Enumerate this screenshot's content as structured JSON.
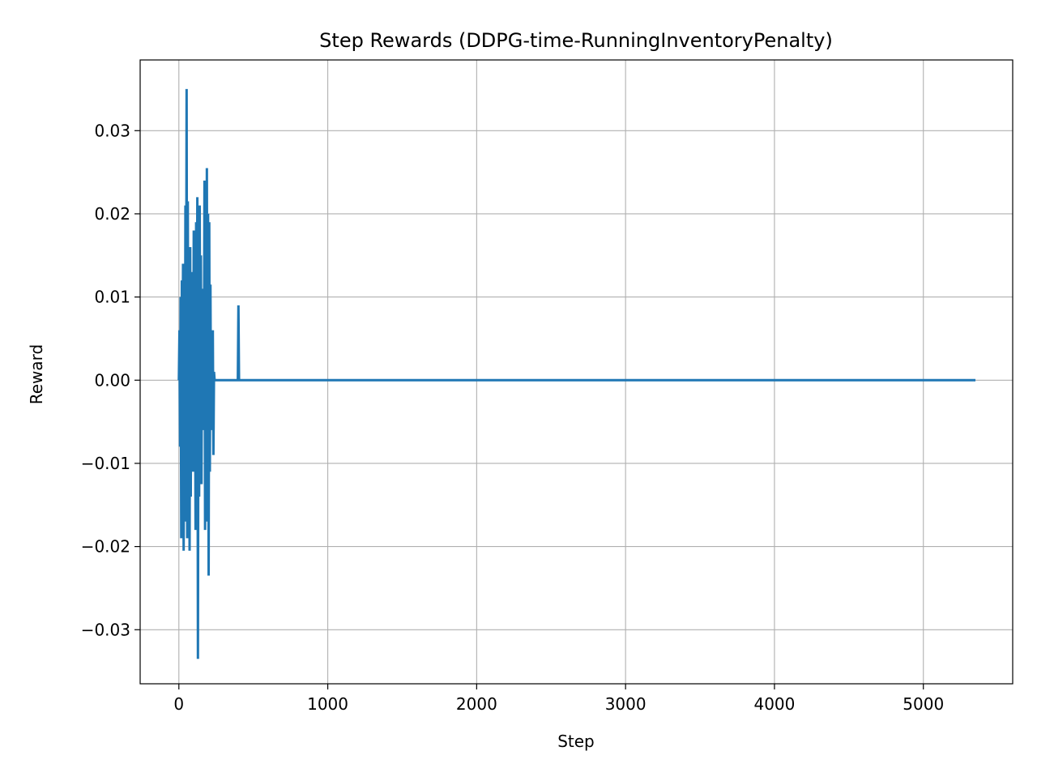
{
  "chart_data": {
    "type": "line",
    "title": "Step Rewards (DDPG-time-RunningInventoryPenalty)",
    "xlabel": "Step",
    "ylabel": "Reward",
    "xlim": [
      -260,
      5600
    ],
    "ylim": [
      -0.0365,
      0.0385
    ],
    "xticks": [
      0,
      1000,
      2000,
      3000,
      4000,
      5000
    ],
    "xtick_labels": [
      "0",
      "1000",
      "2000",
      "3000",
      "4000",
      "5000"
    ],
    "yticks": [
      -0.03,
      -0.02,
      -0.01,
      0.0,
      0.01,
      0.02,
      0.03
    ],
    "ytick_labels": [
      "−0.03",
      "−0.02",
      "−0.01",
      "0.00",
      "0.01",
      "0.02",
      "0.03"
    ],
    "grid": true,
    "line_color": "#1f77b4",
    "series": [
      {
        "x": [
          0,
          4,
          8,
          12,
          16,
          20,
          24,
          28,
          32,
          36,
          40,
          44,
          48,
          52,
          56,
          60,
          64,
          68,
          72,
          76,
          80,
          84,
          88,
          92,
          96,
          100,
          104,
          108,
          112,
          116,
          120,
          124,
          128,
          132,
          136,
          140,
          144,
          148,
          152,
          156,
          160,
          164,
          168,
          172,
          176,
          180,
          184,
          188,
          192,
          196,
          200,
          204,
          208,
          212,
          216,
          220,
          224,
          228,
          232,
          236,
          240,
          244,
          248,
          252,
          256,
          260,
          264,
          268,
          272,
          276,
          280,
          284,
          288,
          292,
          296,
          300,
          304,
          308,
          312,
          316,
          320,
          324,
          328,
          332,
          336,
          340,
          344,
          348,
          352,
          356,
          360,
          364,
          368,
          372,
          376,
          380,
          384,
          388,
          392,
          396,
          400,
          404,
          408,
          412,
          416,
          420,
          5350
        ],
        "y": [
          0.0,
          0.006,
          -0.008,
          0.01,
          -0.019,
          0.012,
          -0.004,
          0.014,
          -0.0205,
          0.009,
          -0.017,
          0.021,
          -0.006,
          0.035,
          -0.019,
          0.0215,
          -0.013,
          0.011,
          -0.0205,
          0.016,
          -0.014,
          0.013,
          -0.011,
          0.007,
          -0.009,
          0.018,
          -0.011,
          0.006,
          -0.018,
          0.019,
          -0.008,
          0.022,
          -0.0335,
          0.009,
          -0.014,
          0.021,
          -0.008,
          0.015,
          -0.0125,
          0.011,
          -0.006,
          0.008,
          -0.002,
          0.024,
          -0.018,
          0.019,
          -0.009,
          0.0255,
          -0.017,
          0.02,
          -0.0235,
          0.019,
          -0.011,
          0.0115,
          -0.006,
          0.0035,
          -0.0055,
          0.006,
          -0.009,
          0.001,
          0.0,
          0.0,
          0.0,
          0.0,
          0.0,
          0.0,
          0.0,
          0.0,
          0.0,
          0.0,
          0.0,
          0.0,
          0.0,
          0.0,
          0.0,
          0.0,
          0.0,
          0.0,
          0.0,
          0.0,
          0.0,
          0.0,
          0.0,
          0.0,
          0.0,
          0.0,
          0.0,
          0.0,
          0.0,
          0.0,
          0.0,
          0.0,
          0.0,
          0.0,
          0.0,
          0.0,
          0.0,
          0.0,
          0.0,
          0.0,
          0.009,
          0.0,
          0.0,
          0.0,
          0.0,
          0.0,
          0.0
        ]
      }
    ]
  }
}
